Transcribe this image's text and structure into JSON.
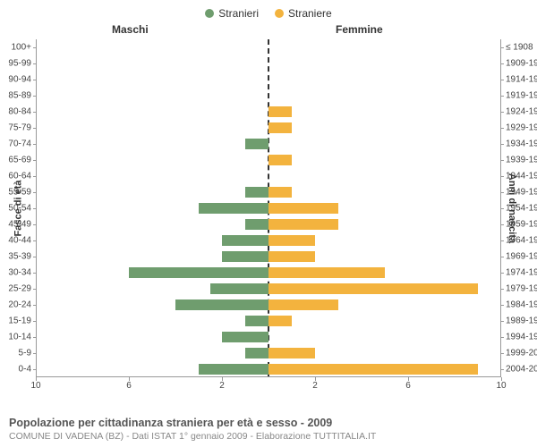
{
  "legend": {
    "male": "Stranieri",
    "female": "Straniere",
    "male_color": "#6f9d6e",
    "female_color": "#f3b33e"
  },
  "headers": {
    "male": "Maschi",
    "female": "Femmine"
  },
  "axis_titles": {
    "left": "Fasce di età",
    "right": "Anni di nascita"
  },
  "x_axis": {
    "max": 10,
    "ticks": [
      10,
      6,
      2,
      2,
      6,
      10
    ],
    "positions_pct": [
      0,
      20,
      40,
      60,
      80,
      100
    ]
  },
  "bar_colors": {
    "male": "#6f9d6e",
    "female": "#f3b33e"
  },
  "rows": [
    {
      "age": "100+",
      "birth": "≤ 1908",
      "m": 0,
      "f": 0
    },
    {
      "age": "95-99",
      "birth": "1909-1913",
      "m": 0,
      "f": 0
    },
    {
      "age": "90-94",
      "birth": "1914-1918",
      "m": 0,
      "f": 0
    },
    {
      "age": "85-89",
      "birth": "1919-1923",
      "m": 0,
      "f": 0
    },
    {
      "age": "80-84",
      "birth": "1924-1928",
      "m": 0,
      "f": 1
    },
    {
      "age": "75-79",
      "birth": "1929-1933",
      "m": 0,
      "f": 1
    },
    {
      "age": "70-74",
      "birth": "1934-1938",
      "m": 1,
      "f": 0
    },
    {
      "age": "65-69",
      "birth": "1939-1943",
      "m": 0,
      "f": 1
    },
    {
      "age": "60-64",
      "birth": "1944-1948",
      "m": 0,
      "f": 0
    },
    {
      "age": "55-59",
      "birth": "1949-1953",
      "m": 1,
      "f": 1
    },
    {
      "age": "50-54",
      "birth": "1954-1958",
      "m": 3,
      "f": 3
    },
    {
      "age": "45-49",
      "birth": "1959-1963",
      "m": 1,
      "f": 3
    },
    {
      "age": "40-44",
      "birth": "1964-1968",
      "m": 2,
      "f": 2
    },
    {
      "age": "35-39",
      "birth": "1969-1973",
      "m": 2,
      "f": 2
    },
    {
      "age": "30-34",
      "birth": "1974-1978",
      "m": 6,
      "f": 5
    },
    {
      "age": "25-29",
      "birth": "1979-1983",
      "m": 2.5,
      "f": 9
    },
    {
      "age": "20-24",
      "birth": "1984-1988",
      "m": 4,
      "f": 3
    },
    {
      "age": "15-19",
      "birth": "1989-1993",
      "m": 1,
      "f": 1
    },
    {
      "age": "10-14",
      "birth": "1994-1998",
      "m": 2,
      "f": 0
    },
    {
      "age": "5-9",
      "birth": "1999-2003",
      "m": 1,
      "f": 2
    },
    {
      "age": "0-4",
      "birth": "2004-2008",
      "m": 3,
      "f": 9
    }
  ],
  "footer": {
    "title": "Popolazione per cittadinanza straniera per età e sesso - 2009",
    "subtitle": "COMUNE DI VADENA (BZ) - Dati ISTAT 1° gennaio 2009 - Elaborazione TUTTITALIA.IT"
  }
}
